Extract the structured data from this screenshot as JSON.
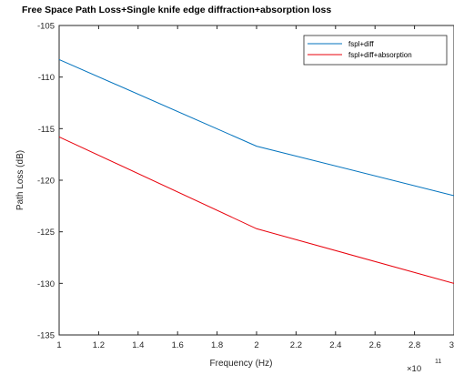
{
  "chart_data": {
    "type": "line",
    "title": "Free Space Path Loss+Single knife edge diffraction+absorption loss",
    "xlabel": "Frequency (Hz)",
    "ylabel": "Path Loss (dB)",
    "x_multiplier": {
      "base": "10",
      "exponent": "11"
    },
    "xlim": [
      1,
      3
    ],
    "ylim": [
      -135,
      -105
    ],
    "x_ticks": [
      "1",
      "1.2",
      "1.4",
      "1.6",
      "1.8",
      "2",
      "2.2",
      "2.4",
      "2.6",
      "2.8",
      "3"
    ],
    "y_ticks": [
      "-135",
      "-130",
      "-125",
      "-120",
      "-115",
      "-110",
      "-105"
    ],
    "x_tick_values": [
      1,
      1.2,
      1.4,
      1.6,
      1.8,
      2,
      2.2,
      2.4,
      2.6,
      2.8,
      3
    ],
    "y_tick_values": [
      -135,
      -130,
      -125,
      -120,
      -115,
      -110,
      -105
    ],
    "grid": false,
    "legend_position": "top-right",
    "series": [
      {
        "name": "fspl+diff",
        "color": "#0072BD",
        "x": [
          1,
          2,
          3
        ],
        "y": [
          -108.3,
          -116.7,
          -121.5
        ]
      },
      {
        "name": "fspl+diff+absorption",
        "color": "#E8000B",
        "x": [
          1,
          2,
          3
        ],
        "y": [
          -115.8,
          -124.7,
          -130.0
        ]
      }
    ]
  }
}
